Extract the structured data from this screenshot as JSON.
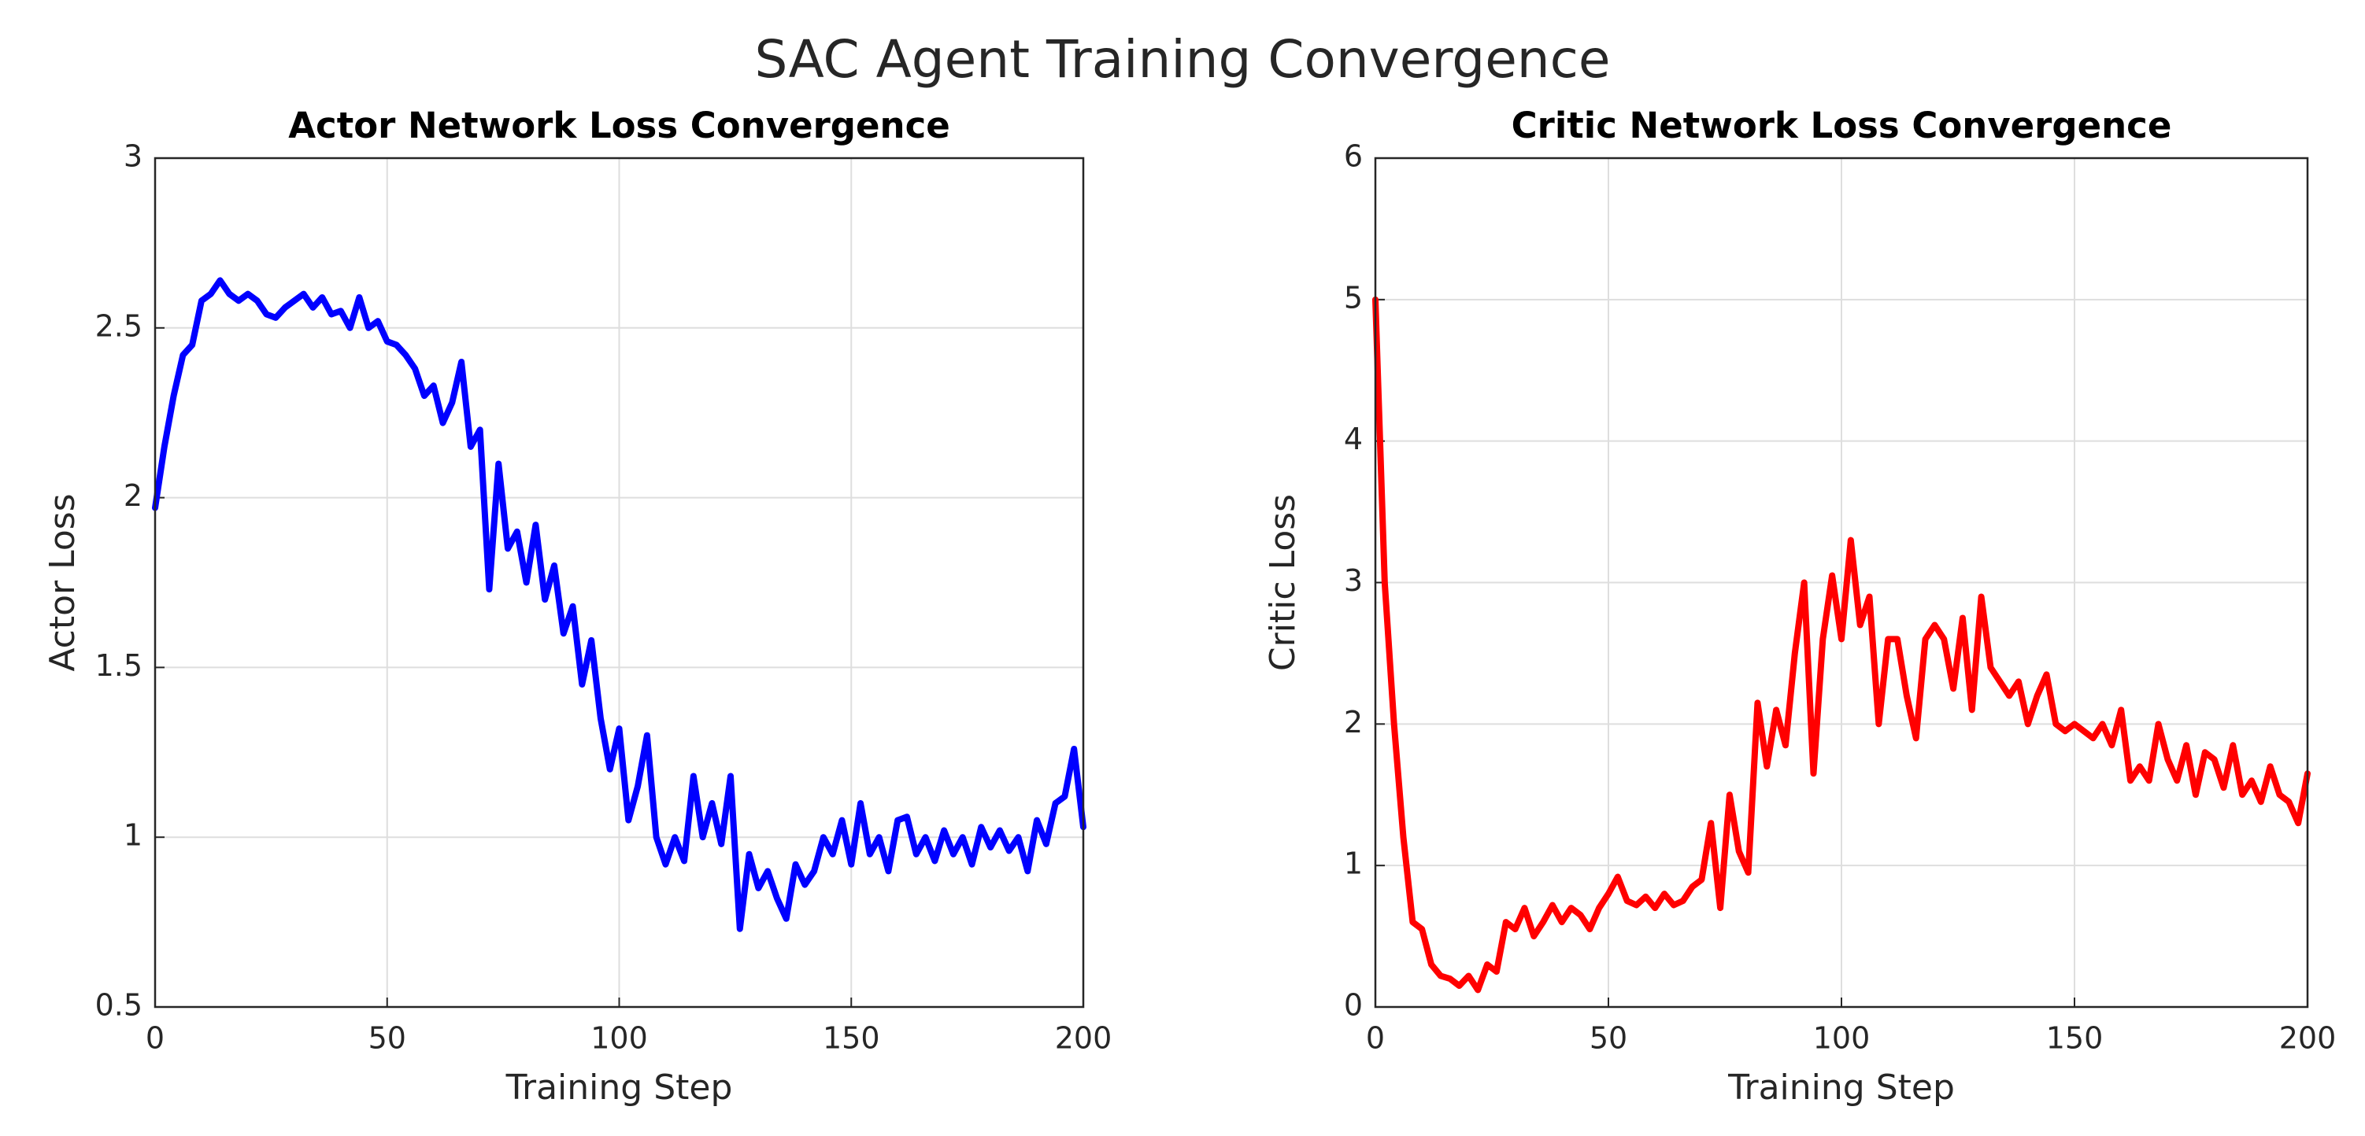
{
  "title": "SAC Agent Training Convergence",
  "chart_data": [
    {
      "type": "line",
      "title": "Actor Network Loss Convergence",
      "x_label": "Training Step",
      "y_label": "Actor Loss",
      "color": "#0000ff",
      "grid": true,
      "x": [
        0,
        2,
        4,
        6,
        8,
        10,
        12,
        14,
        16,
        18,
        20,
        22,
        24,
        26,
        28,
        30,
        32,
        34,
        36,
        38,
        40,
        42,
        44,
        46,
        48,
        50,
        52,
        54,
        56,
        58,
        60,
        62,
        64,
        66,
        68,
        70,
        72,
        74,
        76,
        78,
        80,
        82,
        84,
        86,
        88,
        90,
        92,
        94,
        96,
        98,
        100,
        102,
        104,
        106,
        108,
        110,
        112,
        114,
        116,
        118,
        120,
        122,
        124,
        126,
        128,
        130,
        132,
        134,
        136,
        138,
        140,
        142,
        144,
        146,
        148,
        150,
        152,
        154,
        156,
        158,
        160,
        162,
        164,
        166,
        168,
        170,
        172,
        174,
        176,
        178,
        180,
        182,
        184,
        186,
        188,
        190,
        192,
        194,
        196,
        198,
        200
      ],
      "values": [
        1.97,
        2.15,
        2.3,
        2.42,
        2.45,
        2.58,
        2.6,
        2.64,
        2.6,
        2.58,
        2.6,
        2.58,
        2.54,
        2.53,
        2.56,
        2.58,
        2.6,
        2.56,
        2.59,
        2.54,
        2.55,
        2.5,
        2.59,
        2.5,
        2.52,
        2.46,
        2.45,
        2.42,
        2.38,
        2.3,
        2.33,
        2.22,
        2.28,
        2.4,
        2.15,
        2.2,
        1.73,
        2.1,
        1.85,
        1.9,
        1.75,
        1.92,
        1.7,
        1.8,
        1.6,
        1.68,
        1.45,
        1.58,
        1.35,
        1.2,
        1.32,
        1.05,
        1.15,
        1.3,
        1.0,
        0.92,
        1.0,
        0.93,
        1.18,
        1.0,
        1.1,
        0.98,
        1.18,
        0.73,
        0.95,
        0.85,
        0.9,
        0.82,
        0.76,
        0.92,
        0.86,
        0.9,
        1.0,
        0.95,
        1.05,
        0.92,
        1.1,
        0.95,
        1.0,
        0.9,
        1.05,
        1.06,
        0.95,
        1.0,
        0.93,
        1.02,
        0.95,
        1.0,
        0.92,
        1.03,
        0.97,
        1.02,
        0.96,
        1.0,
        0.9,
        1.05,
        0.98,
        1.1,
        1.12,
        1.26,
        1.03
      ],
      "xlim": [
        0,
        200
      ],
      "xticks": [
        0,
        50,
        100,
        150,
        200
      ],
      "ylim": [
        0.5,
        3
      ],
      "yticks": [
        0.5,
        1,
        1.5,
        2,
        2.5,
        3
      ]
    },
    {
      "type": "line",
      "title": "Critic Network Loss Convergence",
      "x_label": "Training Step",
      "y_label": "Critic Loss",
      "color": "#ff0000",
      "grid": true,
      "x": [
        0,
        2,
        4,
        6,
        8,
        10,
        12,
        14,
        16,
        18,
        20,
        22,
        24,
        26,
        28,
        30,
        32,
        34,
        36,
        38,
        40,
        42,
        44,
        46,
        48,
        50,
        52,
        54,
        56,
        58,
        60,
        62,
        64,
        66,
        68,
        70,
        72,
        74,
        76,
        78,
        80,
        82,
        84,
        86,
        88,
        90,
        92,
        94,
        96,
        98,
        100,
        102,
        104,
        106,
        108,
        110,
        112,
        114,
        116,
        118,
        120,
        122,
        124,
        126,
        128,
        130,
        132,
        134,
        136,
        138,
        140,
        142,
        144,
        146,
        148,
        150,
        152,
        154,
        156,
        158,
        160,
        162,
        164,
        166,
        168,
        170,
        172,
        174,
        176,
        178,
        180,
        182,
        184,
        186,
        188,
        190,
        192,
        194,
        196,
        198,
        200
      ],
      "values": [
        5.0,
        3.0,
        2.0,
        1.2,
        0.6,
        0.55,
        0.3,
        0.22,
        0.2,
        0.15,
        0.22,
        0.12,
        0.3,
        0.25,
        0.6,
        0.55,
        0.7,
        0.5,
        0.6,
        0.72,
        0.6,
        0.7,
        0.65,
        0.55,
        0.7,
        0.8,
        0.92,
        0.75,
        0.72,
        0.78,
        0.7,
        0.8,
        0.72,
        0.75,
        0.85,
        0.9,
        1.3,
        0.7,
        1.5,
        1.1,
        0.95,
        2.15,
        1.7,
        2.1,
        1.85,
        2.5,
        3.0,
        1.65,
        2.6,
        3.05,
        2.6,
        3.3,
        2.7,
        2.9,
        2.0,
        2.6,
        2.6,
        2.2,
        1.9,
        2.6,
        2.7,
        2.6,
        2.25,
        2.75,
        2.1,
        2.9,
        2.4,
        2.3,
        2.2,
        2.3,
        2.0,
        2.2,
        2.35,
        2.0,
        1.95,
        2.0,
        1.95,
        1.9,
        2.0,
        1.85,
        2.1,
        1.6,
        1.7,
        1.6,
        2.0,
        1.75,
        1.6,
        1.85,
        1.5,
        1.8,
        1.75,
        1.55,
        1.85,
        1.5,
        1.6,
        1.45,
        1.7,
        1.5,
        1.45,
        1.3,
        1.65
      ],
      "xlim": [
        0,
        200
      ],
      "xticks": [
        0,
        50,
        100,
        150,
        200
      ],
      "ylim": [
        0,
        6
      ],
      "yticks": [
        0,
        1,
        2,
        3,
        4,
        5,
        6
      ]
    }
  ]
}
